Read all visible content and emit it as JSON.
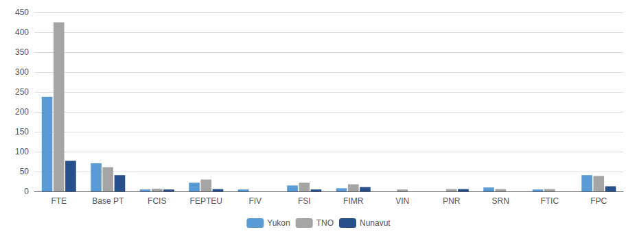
{
  "chart_data": {
    "type": "bar",
    "categories": [
      "FTE",
      "Base PT",
      "FCIS",
      "FEPTEU",
      "FIV",
      "FSI",
      "FIMR",
      "VIN",
      "PNR",
      "SRN",
      "FTIC",
      "FPC"
    ],
    "series": [
      {
        "name": "Yukon",
        "color": "#5b9bd5",
        "values": [
          238,
          71,
          5,
          22,
          5,
          15,
          8,
          0,
          0,
          10,
          5,
          41
        ]
      },
      {
        "name": "TNO",
        "color": "#a5a5a5",
        "values": [
          425,
          61,
          7,
          30,
          0,
          22,
          18,
          5,
          6,
          6,
          6,
          39
        ]
      },
      {
        "name": "Nunavut",
        "color": "#264f8c",
        "values": [
          77,
          41,
          5,
          6,
          0,
          5,
          11,
          0,
          6,
          0,
          0,
          13
        ]
      }
    ],
    "ylim": [
      0,
      450
    ],
    "yticks": [
      0,
      50,
      100,
      150,
      200,
      250,
      300,
      350,
      400,
      450
    ],
    "grid": true,
    "legend": "bottom"
  }
}
